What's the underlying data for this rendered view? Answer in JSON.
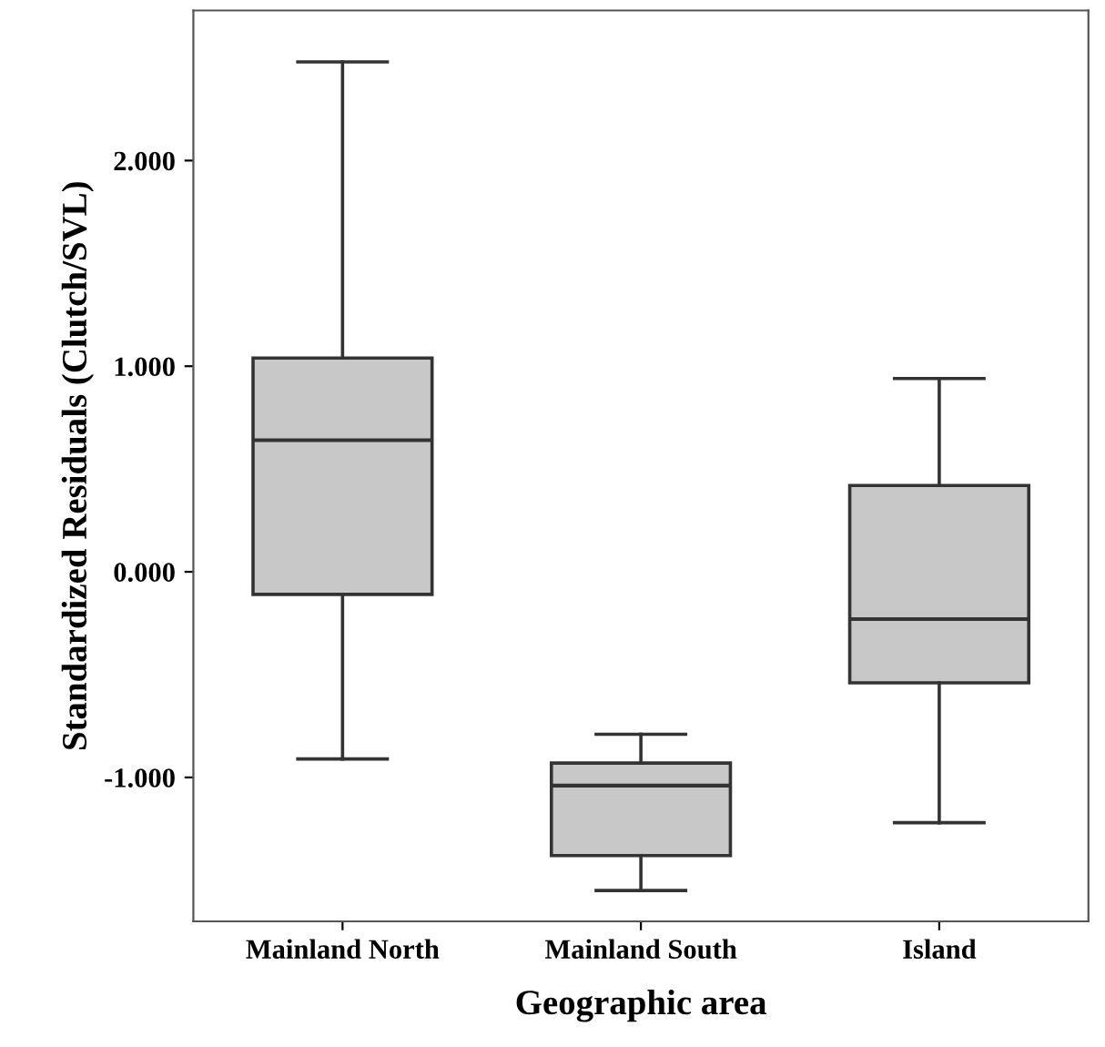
{
  "chart_data": {
    "type": "box",
    "xlabel": "Geographic area",
    "ylabel": "Standardized Residuals (Clutch/SVL)",
    "categories": [
      "Mainland North",
      "Mainland South",
      "Island"
    ],
    "boxes": [
      {
        "low": -0.91,
        "q1": -0.11,
        "median": 0.64,
        "q3": 1.04,
        "high": 2.48
      },
      {
        "low": -1.55,
        "q1": -1.38,
        "median": -1.04,
        "q3": -0.93,
        "high": -0.79
      },
      {
        "low": -1.22,
        "q1": -0.54,
        "median": -0.23,
        "q3": 0.42,
        "high": 0.94
      }
    ],
    "color": "#c8c8c8",
    "ylim": [
      -1.7,
      2.73
    ],
    "yticks": [
      {
        "value": -1,
        "label": "-1.000"
      },
      {
        "value": 0,
        "label": "0.000"
      },
      {
        "value": 1,
        "label": "1.000"
      },
      {
        "value": 2,
        "label": "2.000"
      }
    ],
    "grid": false
  }
}
